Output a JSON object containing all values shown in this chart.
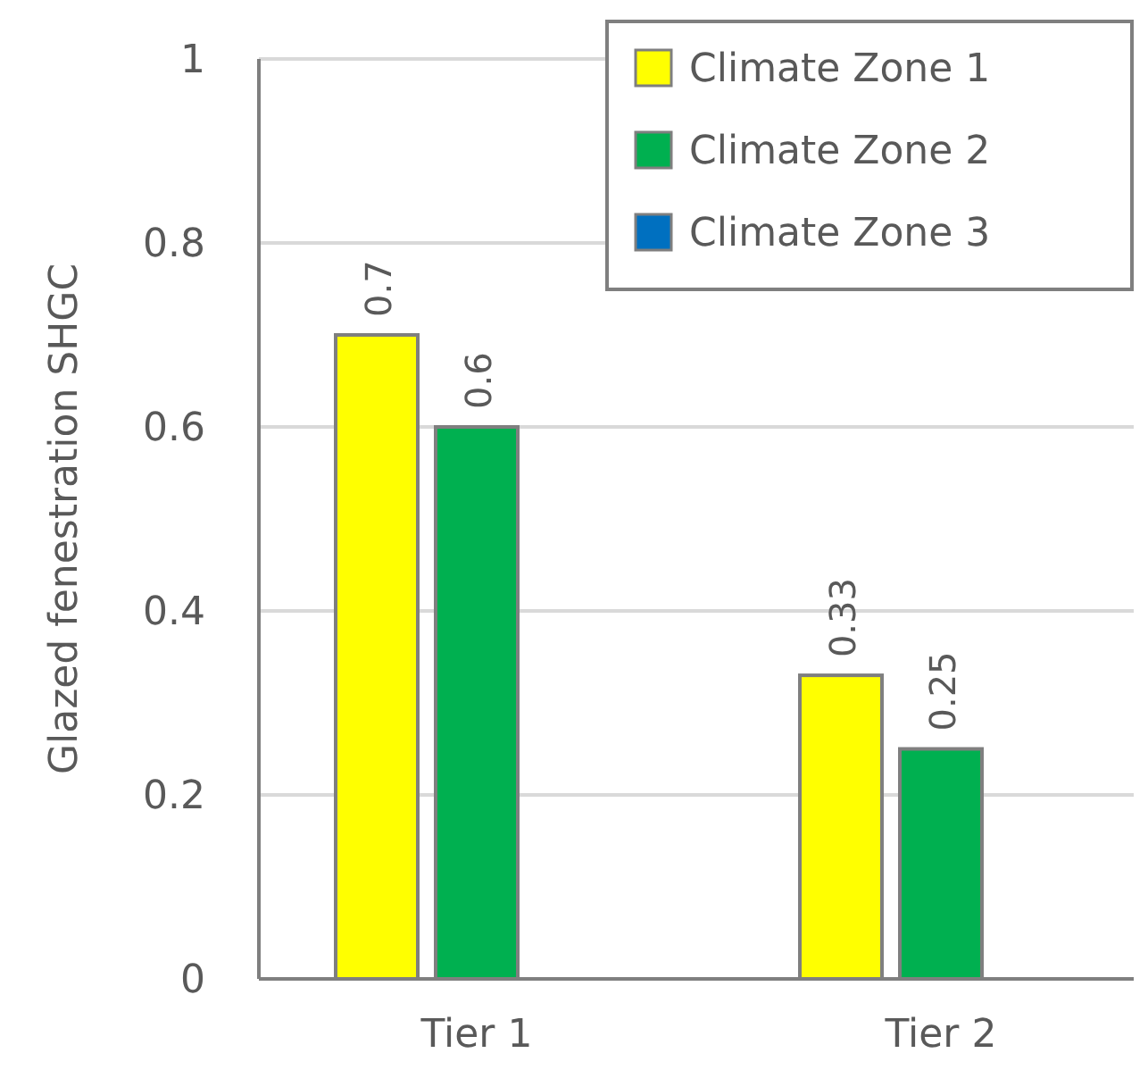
{
  "chart_data": {
    "type": "bar",
    "ylabel": "Glazed fenestration SHGC",
    "categories": [
      "Tier 1",
      "Tier 2"
    ],
    "series": [
      {
        "name": "Climate Zone 1",
        "color": "#ffff00",
        "values": [
          0.7,
          0.33
        ]
      },
      {
        "name": "Climate Zone 2",
        "color": "#00b050",
        "values": [
          0.6,
          0.25
        ]
      },
      {
        "name": "Climate Zone 3",
        "color": "#0070c0",
        "values": [
          null,
          null
        ]
      }
    ],
    "ylim": [
      0,
      1
    ],
    "yticks": [
      0,
      0.2,
      0.4,
      0.6,
      0.8,
      1
    ],
    "grid": "y",
    "legend": "top right",
    "data_labels": true
  }
}
